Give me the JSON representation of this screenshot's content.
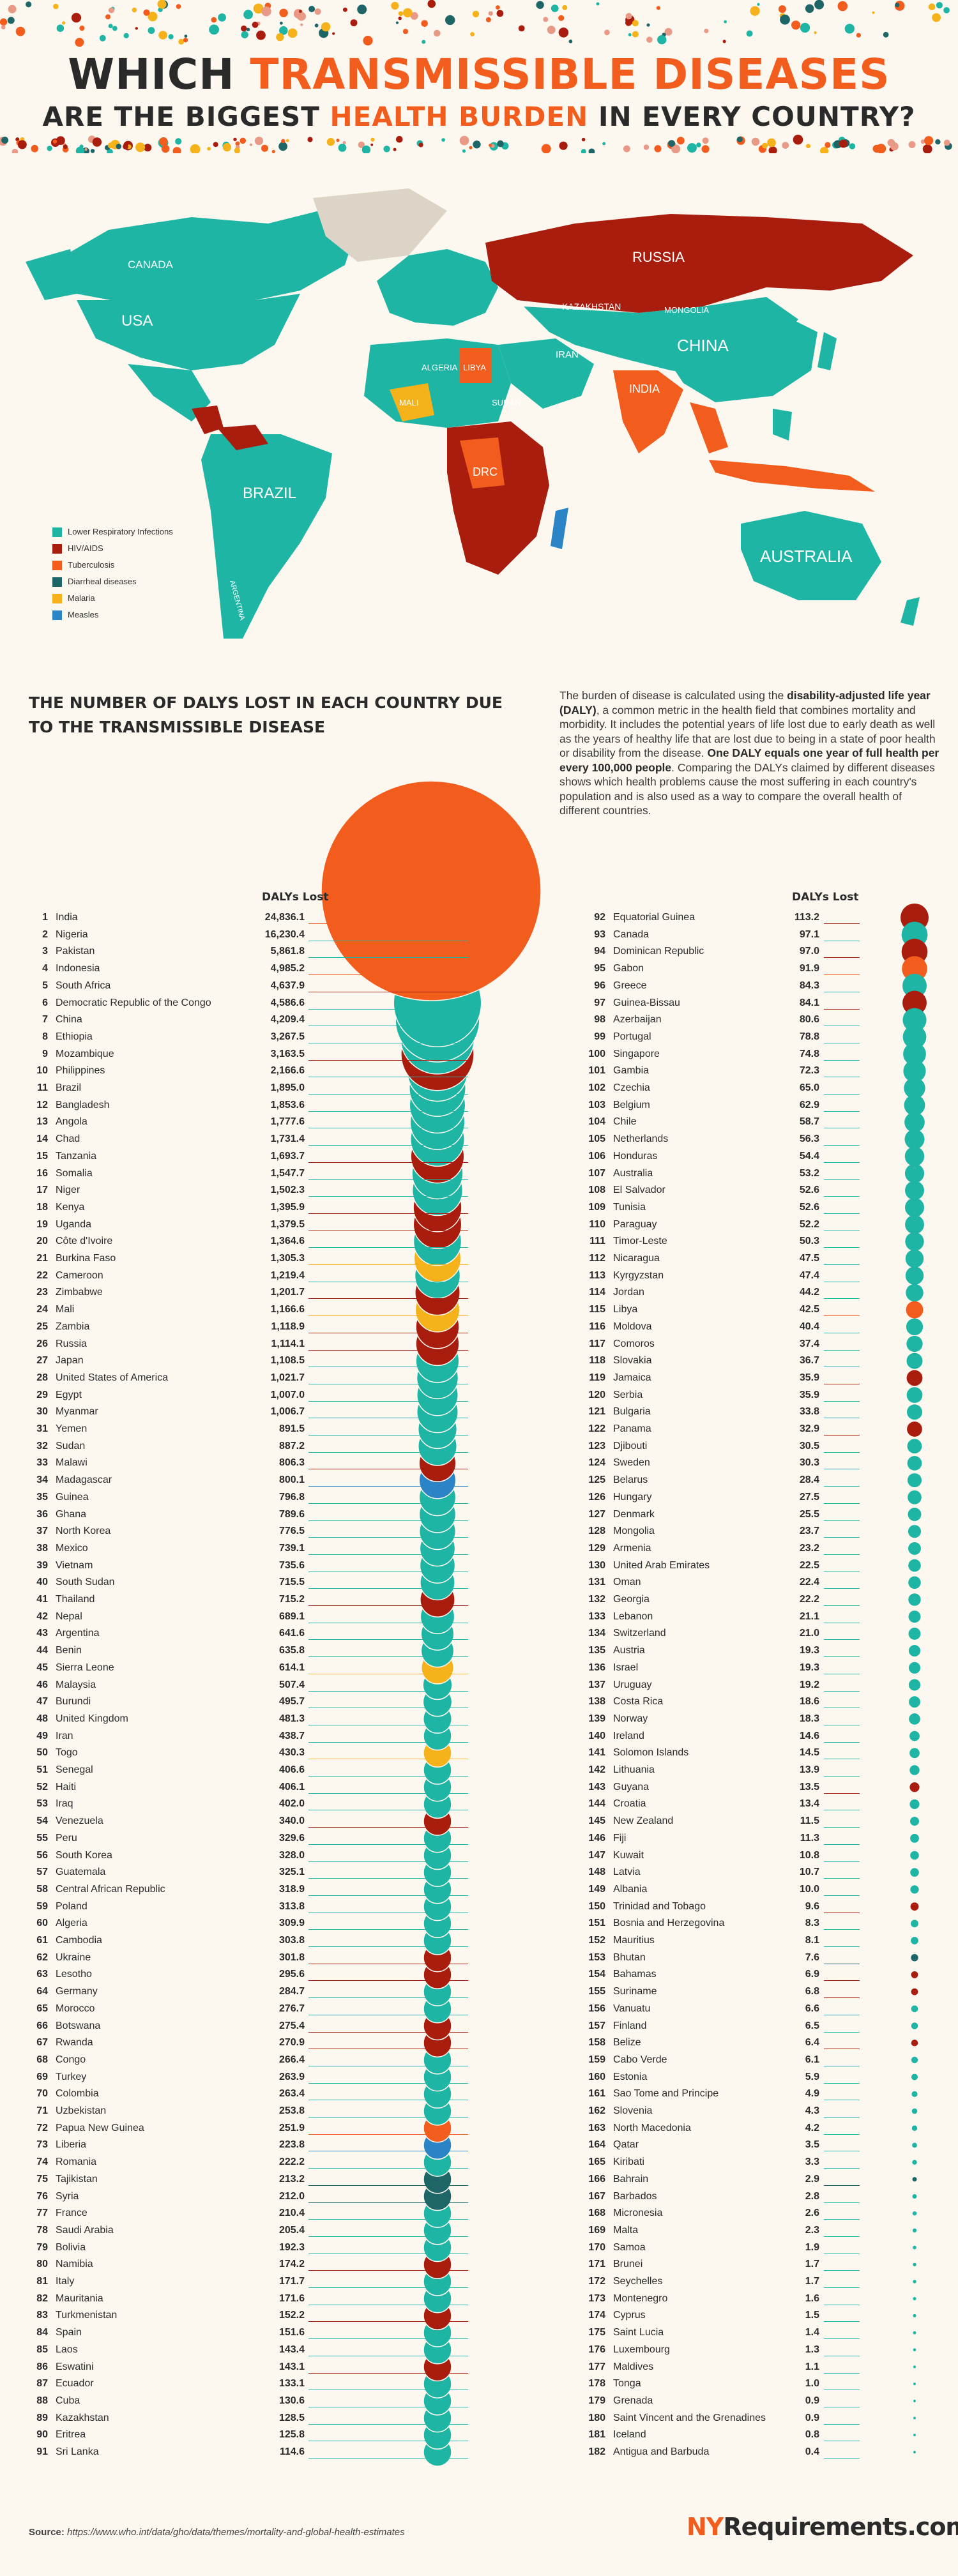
{
  "header": {
    "line1_a": "WHICH ",
    "line1_b": "TRANSMISSIBLE DISEASES",
    "line2_a": "ARE THE BIGGEST ",
    "line2_b": "HEALTH BURDEN",
    "line2_c": " IN EVERY COUNTRY?"
  },
  "map": {
    "labels": [
      "CANADA",
      "USA",
      "BRAZIL",
      "RUSSIA",
      "KAZAKHSTAN",
      "MONGOLIA",
      "CHINA",
      "INDIA",
      "IRAN",
      "ALGERIA",
      "LIBYA",
      "MALI",
      "SUDAN",
      "DRC",
      "AUSTRALIA",
      "ARGENTINA"
    ]
  },
  "legend": {
    "items": [
      {
        "label": "Lower Respiratory Infections",
        "color": "#1fb5a5"
      },
      {
        "label": "HIV/AIDS",
        "color": "#a91d0e"
      },
      {
        "label": "Tuberculosis",
        "color": "#f25c1d"
      },
      {
        "label": "Diarrheal diseases",
        "color": "#1d6566"
      },
      {
        "label": "Malaria",
        "color": "#f5b21b"
      },
      {
        "label": "Measles",
        "color": "#2b84c6"
      }
    ]
  },
  "intro": {
    "title": "THE NUMBER OF DALYS LOST IN EACH COUNTRY DUE TO THE TRANSMISSIBLE DISEASE",
    "p1": "The burden of disease is calculated using the ",
    "p1_b": "disability-adjusted life year (DALY)",
    "p2": ", a common metric in the health field that combines mortality and morbidity. It includes the potential years of life lost due to early death as well as the years of healthy life that are lost due to being in a state of poor health or disability from the disease. ",
    "p2_b": "One DALY equals one year of full health per every 100,000 people",
    "p3": ". Comparing the DALYs claimed by different diseases shows which health problems cause the most suffering in each country's population and is also used as a way to compare the overall health of different countries."
  },
  "chart_data": {
    "type": "bubble",
    "title": "THE NUMBER OF DALYS LOST IN EACH COUNTRY DUE TO THE TRANSMISSIBLE DISEASE",
    "value_label": "DALYs Lost",
    "series_colors": {
      "L": "#1fb5a5",
      "H": "#a91d0e",
      "T": "#f25c1d",
      "D": "#1d6566",
      "M": "#f5b21b",
      "S": "#2b84c6"
    },
    "rows": [
      [
        "1",
        "India",
        "24,836.1",
        "T"
      ],
      [
        "2",
        "Nigeria",
        "16,230.4",
        "L"
      ],
      [
        "3",
        "Pakistan",
        "5,861.8",
        "L"
      ],
      [
        "4",
        "Indonesia",
        "4,985.2",
        "T"
      ],
      [
        "5",
        "South Africa",
        "4,637.9",
        "H"
      ],
      [
        "6",
        "Democratic Republic of the Congo",
        "4,586.6",
        "L"
      ],
      [
        "7",
        "China",
        "4,209.4",
        "L"
      ],
      [
        "8",
        "Ethiopia",
        "3,267.5",
        "L"
      ],
      [
        "9",
        "Mozambique",
        "3,163.5",
        "H"
      ],
      [
        "10",
        "Philippines",
        "2,166.6",
        "L"
      ],
      [
        "11",
        "Brazil",
        "1,895.0",
        "L"
      ],
      [
        "12",
        "Bangladesh",
        "1,853.6",
        "L"
      ],
      [
        "13",
        "Angola",
        "1,777.6",
        "L"
      ],
      [
        "14",
        "Chad",
        "1,731.4",
        "L"
      ],
      [
        "15",
        "Tanzania",
        "1,693.7",
        "H"
      ],
      [
        "16",
        "Somalia",
        "1,547.7",
        "L"
      ],
      [
        "17",
        "Niger",
        "1,502.3",
        "L"
      ],
      [
        "18",
        "Kenya",
        "1,395.9",
        "H"
      ],
      [
        "19",
        "Uganda",
        "1,379.5",
        "H"
      ],
      [
        "20",
        "Côte d'Ivoire",
        "1,364.6",
        "L"
      ],
      [
        "21",
        "Burkina Faso",
        "1,305.3",
        "M"
      ],
      [
        "22",
        "Cameroon",
        "1,219.4",
        "L"
      ],
      [
        "23",
        "Zimbabwe",
        "1,201.7",
        "H"
      ],
      [
        "24",
        "Mali",
        "1,166.6",
        "M"
      ],
      [
        "25",
        "Zambia",
        "1,118.9",
        "H"
      ],
      [
        "26",
        "Russia",
        "1,114.1",
        "H"
      ],
      [
        "27",
        "Japan",
        "1,108.5",
        "L"
      ],
      [
        "28",
        "United States of America",
        "1,021.7",
        "L"
      ],
      [
        "29",
        "Egypt",
        "1,007.0",
        "L"
      ],
      [
        "30",
        "Myanmar",
        "1,006.7",
        "L"
      ],
      [
        "31",
        "Yemen",
        "891.5",
        "L"
      ],
      [
        "32",
        "Sudan",
        "887.2",
        "L"
      ],
      [
        "33",
        "Malawi",
        "806.3",
        "H"
      ],
      [
        "34",
        "Madagascar",
        "800.1",
        "S"
      ],
      [
        "35",
        "Guinea",
        "796.8",
        "L"
      ],
      [
        "36",
        "Ghana",
        "789.6",
        "L"
      ],
      [
        "37",
        "North Korea",
        "776.5",
        "L"
      ],
      [
        "38",
        "Mexico",
        "739.1",
        "L"
      ],
      [
        "39",
        "Vietnam",
        "735.6",
        "L"
      ],
      [
        "40",
        "South Sudan",
        "715.5",
        "L"
      ],
      [
        "41",
        "Thailand",
        "715.2",
        "H"
      ],
      [
        "42",
        "Nepal",
        "689.1",
        "L"
      ],
      [
        "43",
        "Argentina",
        "641.6",
        "L"
      ],
      [
        "44",
        "Benin",
        "635.8",
        "L"
      ],
      [
        "45",
        "Sierra Leone",
        "614.1",
        "M"
      ],
      [
        "46",
        "Malaysia",
        "507.4",
        "L"
      ],
      [
        "47",
        "Burundi",
        "495.7",
        "L"
      ],
      [
        "48",
        "United Kingdom",
        "481.3",
        "L"
      ],
      [
        "49",
        "Iran",
        "438.7",
        "L"
      ],
      [
        "50",
        "Togo",
        "430.3",
        "M"
      ],
      [
        "51",
        "Senegal",
        "406.6",
        "L"
      ],
      [
        "52",
        "Haiti",
        "406.1",
        "L"
      ],
      [
        "53",
        "Iraq",
        "402.0",
        "L"
      ],
      [
        "54",
        "Venezuela",
        "340.0",
        "H"
      ],
      [
        "55",
        "Peru",
        "329.6",
        "L"
      ],
      [
        "56",
        "South Korea",
        "328.0",
        "L"
      ],
      [
        "57",
        "Guatemala",
        "325.1",
        "L"
      ],
      [
        "58",
        "Central African Republic",
        "318.9",
        "L"
      ],
      [
        "59",
        "Poland",
        "313.8",
        "L"
      ],
      [
        "60",
        "Algeria",
        "309.9",
        "L"
      ],
      [
        "61",
        "Cambodia",
        "303.8",
        "L"
      ],
      [
        "62",
        "Ukraine",
        "301.8",
        "H"
      ],
      [
        "63",
        "Lesotho",
        "295.6",
        "H"
      ],
      [
        "64",
        "Germany",
        "284.7",
        "L"
      ],
      [
        "65",
        "Morocco",
        "276.7",
        "L"
      ],
      [
        "66",
        "Botswana",
        "275.4",
        "H"
      ],
      [
        "67",
        "Rwanda",
        "270.9",
        "H"
      ],
      [
        "68",
        "Congo",
        "266.4",
        "L"
      ],
      [
        "69",
        "Turkey",
        "263.9",
        "L"
      ],
      [
        "70",
        "Colombia",
        "263.4",
        "L"
      ],
      [
        "71",
        "Uzbekistan",
        "253.8",
        "L"
      ],
      [
        "72",
        "Papua New Guinea",
        "251.9",
        "T"
      ],
      [
        "73",
        "Liberia",
        "223.8",
        "S"
      ],
      [
        "74",
        "Romania",
        "222.2",
        "L"
      ],
      [
        "75",
        "Tajikistan",
        "213.2",
        "D"
      ],
      [
        "76",
        "Syria",
        "212.0",
        "D"
      ],
      [
        "77",
        "France",
        "210.4",
        "L"
      ],
      [
        "78",
        "Saudi Arabia",
        "205.4",
        "L"
      ],
      [
        "79",
        "Bolivia",
        "192.3",
        "L"
      ],
      [
        "80",
        "Namibia",
        "174.2",
        "H"
      ],
      [
        "81",
        "Italy",
        "171.7",
        "L"
      ],
      [
        "82",
        "Mauritania",
        "171.6",
        "L"
      ],
      [
        "83",
        "Turkmenistan",
        "152.2",
        "H"
      ],
      [
        "84",
        "Spain",
        "151.6",
        "L"
      ],
      [
        "85",
        "Laos",
        "143.4",
        "L"
      ],
      [
        "86",
        "Eswatini",
        "143.1",
        "H"
      ],
      [
        "87",
        "Ecuador",
        "133.1",
        "L"
      ],
      [
        "88",
        "Cuba",
        "130.6",
        "L"
      ],
      [
        "89",
        "Kazakhstan",
        "128.5",
        "L"
      ],
      [
        "90",
        "Eritrea",
        "125.8",
        "L"
      ],
      [
        "91",
        "Sri Lanka",
        "114.6",
        "L"
      ],
      [
        "92",
        "Equatorial Guinea",
        "113.2",
        "H"
      ],
      [
        "93",
        "Canada",
        "97.1",
        "L"
      ],
      [
        "94",
        "Dominican Republic",
        "97.0",
        "H"
      ],
      [
        "95",
        "Gabon",
        "91.9",
        "T"
      ],
      [
        "96",
        "Greece",
        "84.3",
        "L"
      ],
      [
        "97",
        "Guinea-Bissau",
        "84.1",
        "H"
      ],
      [
        "98",
        "Azerbaijan",
        "80.6",
        "L"
      ],
      [
        "99",
        "Portugal",
        "78.8",
        "L"
      ],
      [
        "100",
        "Singapore",
        "74.8",
        "L"
      ],
      [
        "101",
        "Gambia",
        "72.3",
        "L"
      ],
      [
        "102",
        "Czechia",
        "65.0",
        "L"
      ],
      [
        "103",
        "Belgium",
        "62.9",
        "L"
      ],
      [
        "104",
        "Chile",
        "58.7",
        "L"
      ],
      [
        "105",
        "Netherlands",
        "56.3",
        "L"
      ],
      [
        "106",
        "Honduras",
        "54.4",
        "L"
      ],
      [
        "107",
        "Australia",
        "53.2",
        "L"
      ],
      [
        "108",
        "El Salvador",
        "52.6",
        "L"
      ],
      [
        "109",
        "Tunisia",
        "52.6",
        "L"
      ],
      [
        "110",
        "Paraguay",
        "52.2",
        "L"
      ],
      [
        "111",
        "Timor-Leste",
        "50.3",
        "L"
      ],
      [
        "112",
        "Nicaragua",
        "47.5",
        "L"
      ],
      [
        "113",
        "Kyrgyzstan",
        "47.4",
        "L"
      ],
      [
        "114",
        "Jordan",
        "44.2",
        "L"
      ],
      [
        "115",
        "Libya",
        "42.5",
        "T"
      ],
      [
        "116",
        "Moldova",
        "40.4",
        "L"
      ],
      [
        "117",
        "Comoros",
        "37.4",
        "L"
      ],
      [
        "118",
        "Slovakia",
        "36.7",
        "L"
      ],
      [
        "119",
        "Jamaica",
        "35.9",
        "H"
      ],
      [
        "120",
        "Serbia",
        "35.9",
        "L"
      ],
      [
        "121",
        "Bulgaria",
        "33.8",
        "L"
      ],
      [
        "122",
        "Panama",
        "32.9",
        "H"
      ],
      [
        "123",
        "Djibouti",
        "30.5",
        "L"
      ],
      [
        "124",
        "Sweden",
        "30.3",
        "L"
      ],
      [
        "125",
        "Belarus",
        "28.4",
        "L"
      ],
      [
        "126",
        "Hungary",
        "27.5",
        "L"
      ],
      [
        "127",
        "Denmark",
        "25.5",
        "L"
      ],
      [
        "128",
        "Mongolia",
        "23.7",
        "L"
      ],
      [
        "129",
        "Armenia",
        "23.2",
        "L"
      ],
      [
        "130",
        "United Arab Emirates",
        "22.5",
        "L"
      ],
      [
        "131",
        "Oman",
        "22.4",
        "L"
      ],
      [
        "132",
        "Georgia",
        "22.2",
        "L"
      ],
      [
        "133",
        "Lebanon",
        "21.1",
        "L"
      ],
      [
        "134",
        "Switzerland",
        "21.0",
        "L"
      ],
      [
        "135",
        "Austria",
        "19.3",
        "L"
      ],
      [
        "136",
        "Israel",
        "19.3",
        "L"
      ],
      [
        "137",
        "Uruguay",
        "19.2",
        "L"
      ],
      [
        "138",
        "Costa Rica",
        "18.6",
        "L"
      ],
      [
        "139",
        "Norway",
        "18.3",
        "L"
      ],
      [
        "140",
        "Ireland",
        "14.6",
        "L"
      ],
      [
        "141",
        "Solomon Islands",
        "14.5",
        "L"
      ],
      [
        "142",
        "Lithuania",
        "13.9",
        "L"
      ],
      [
        "143",
        "Guyana",
        "13.5",
        "H"
      ],
      [
        "144",
        "Croatia",
        "13.4",
        "L"
      ],
      [
        "145",
        "New Zealand",
        "11.5",
        "L"
      ],
      [
        "146",
        "Fiji",
        "11.3",
        "L"
      ],
      [
        "147",
        "Kuwait",
        "10.8",
        "L"
      ],
      [
        "148",
        "Latvia",
        "10.7",
        "L"
      ],
      [
        "149",
        "Albania",
        "10.0",
        "L"
      ],
      [
        "150",
        "Trinidad and Tobago",
        "9.6",
        "H"
      ],
      [
        "151",
        "Bosnia and Herzegovina",
        "8.3",
        "L"
      ],
      [
        "152",
        "Mauritius",
        "8.1",
        "L"
      ],
      [
        "153",
        "Bhutan",
        "7.6",
        "D"
      ],
      [
        "154",
        "Bahamas",
        "6.9",
        "H"
      ],
      [
        "155",
        "Suriname",
        "6.8",
        "H"
      ],
      [
        "156",
        "Vanuatu",
        "6.6",
        "L"
      ],
      [
        "157",
        "Finland",
        "6.5",
        "L"
      ],
      [
        "158",
        "Belize",
        "6.4",
        "H"
      ],
      [
        "159",
        "Cabo Verde",
        "6.1",
        "L"
      ],
      [
        "160",
        "Estonia",
        "5.9",
        "L"
      ],
      [
        "161",
        "Sao Tome and Principe",
        "4.9",
        "L"
      ],
      [
        "162",
        "Slovenia",
        "4.3",
        "L"
      ],
      [
        "163",
        "North Macedonia",
        "4.2",
        "L"
      ],
      [
        "164",
        "Qatar",
        "3.5",
        "L"
      ],
      [
        "165",
        "Kiribati",
        "3.3",
        "L"
      ],
      [
        "166",
        "Bahrain",
        "2.9",
        "D"
      ],
      [
        "167",
        "Barbados",
        "2.8",
        "L"
      ],
      [
        "168",
        "Micronesia",
        "2.6",
        "L"
      ],
      [
        "169",
        "Malta",
        "2.3",
        "L"
      ],
      [
        "170",
        "Samoa",
        "1.9",
        "L"
      ],
      [
        "171",
        "Brunei",
        "1.7",
        "L"
      ],
      [
        "172",
        "Seychelles",
        "1.7",
        "L"
      ],
      [
        "173",
        "Montenegro",
        "1.6",
        "L"
      ],
      [
        "174",
        "Cyprus",
        "1.5",
        "L"
      ],
      [
        "175",
        "Saint Lucia",
        "1.4",
        "L"
      ],
      [
        "176",
        "Luxembourg",
        "1.3",
        "L"
      ],
      [
        "177",
        "Maldives",
        "1.1",
        "L"
      ],
      [
        "178",
        "Tonga",
        "1.0",
        "L"
      ],
      [
        "179",
        "Grenada",
        "0.9",
        "L"
      ],
      [
        "180",
        "Saint Vincent and the Grenadines",
        "0.9",
        "L"
      ],
      [
        "181",
        "Iceland",
        "0.8",
        "L"
      ],
      [
        "182",
        "Antigua and Barbuda",
        "0.4",
        "L"
      ]
    ]
  },
  "footer": {
    "source_label": "Source:",
    "source_url": "https://www.who.int/data/gho/data/themes/mortality-and-global-health-estimates",
    "brand_a": "NY",
    "brand_b": "Requirements.com"
  }
}
